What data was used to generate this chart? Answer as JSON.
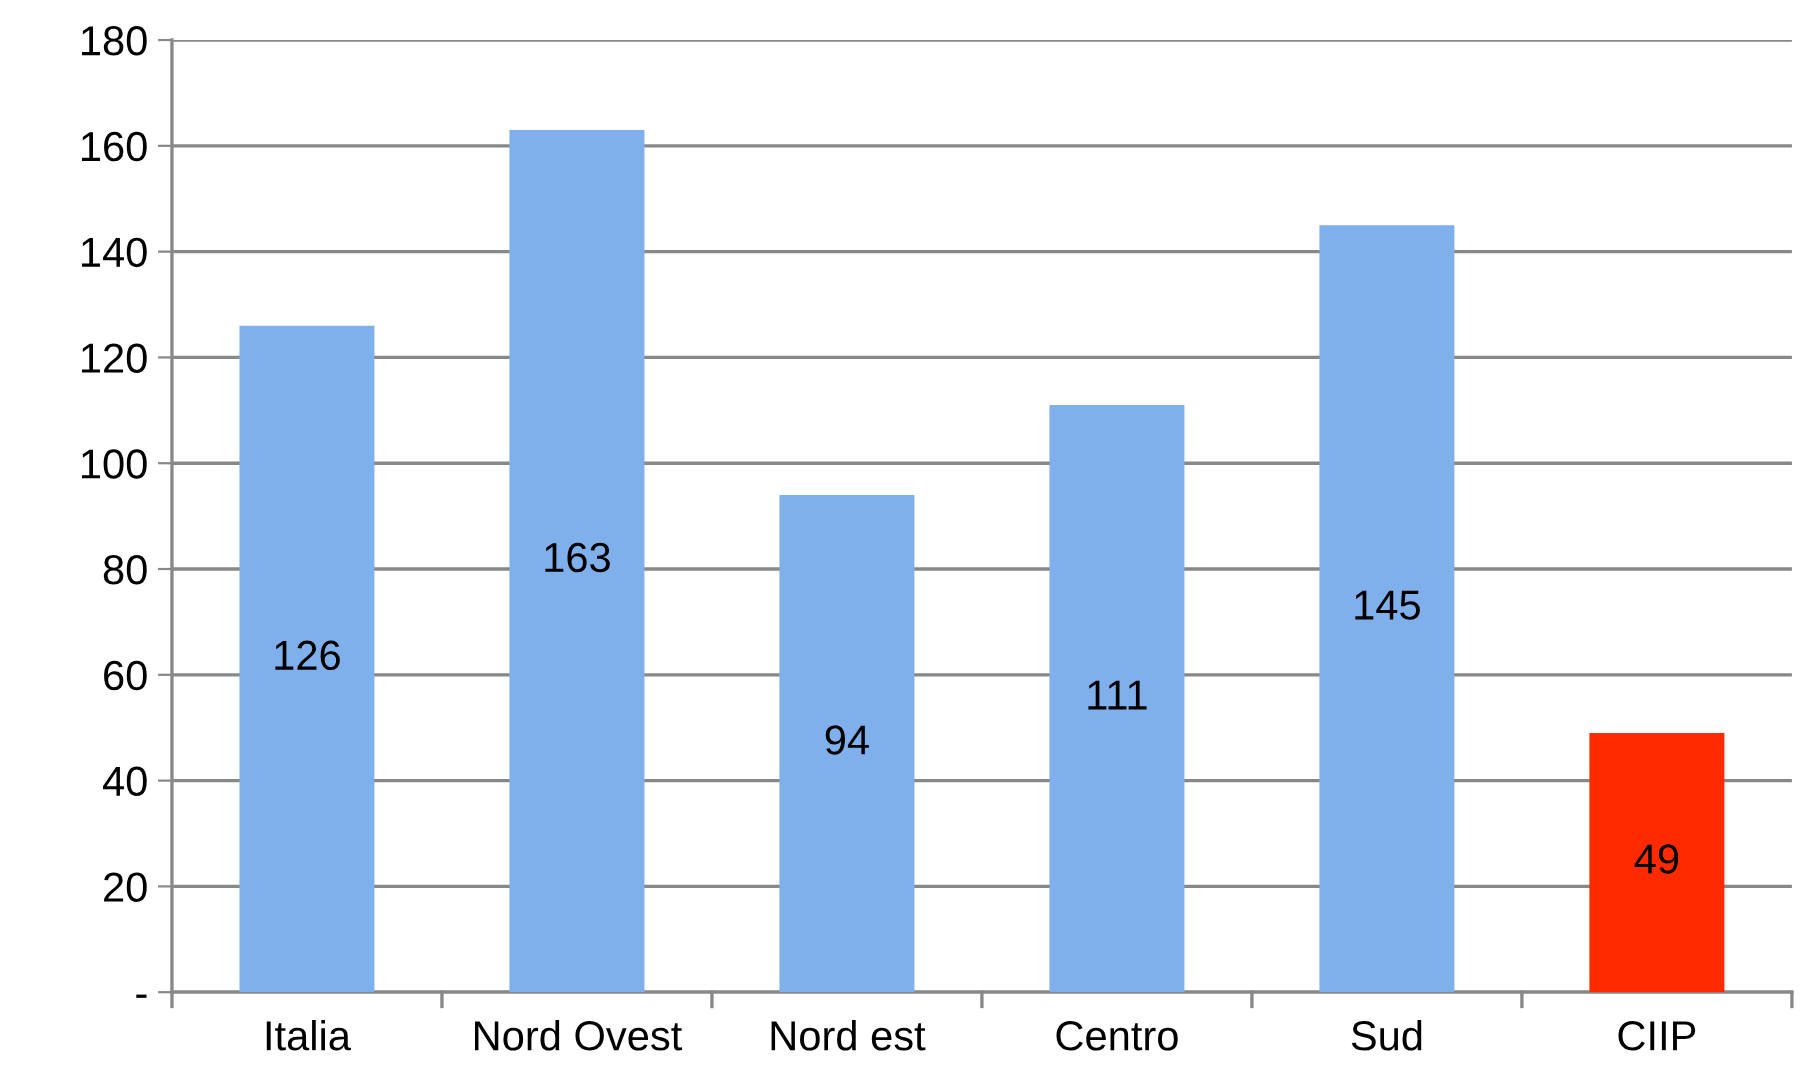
{
  "chart_data": {
    "type": "bar",
    "categories": [
      "Italia",
      "Nord Ovest",
      "Nord est",
      "Centro",
      "Sud",
      "CIIP"
    ],
    "values": [
      126,
      163,
      94,
      111,
      145,
      49
    ],
    "colors": [
      "#7fb0ec",
      "#7fb0ec",
      "#7fb0ec",
      "#7fb0ec",
      "#7fb0ec",
      "#ff2a00"
    ],
    "ylim": [
      0,
      180
    ],
    "yticks": [
      {
        "value": 0,
        "label": "-"
      },
      20,
      40,
      60,
      80,
      100,
      120,
      140,
      160,
      180
    ],
    "grid": "y",
    "data_labels": true
  }
}
